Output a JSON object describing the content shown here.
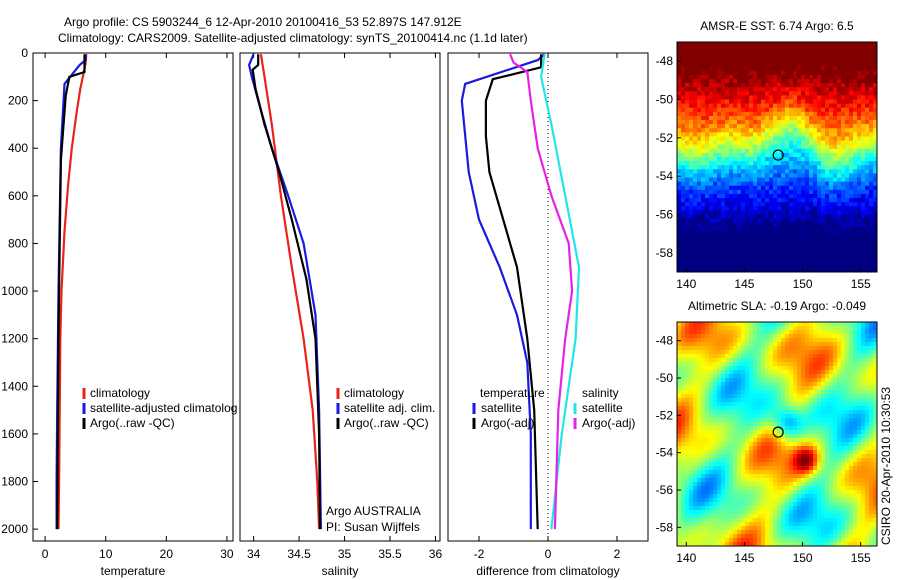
{
  "figure": {
    "title_line1": "Argo profile: CS 5903244_6 12-Apr-2010 20100416_53 52.897S 147.912E",
    "title_line2": "Climatology: CARS2009. Satellite-adjusted climatology: synTS_20100414.nc (1.1d later)",
    "side_stamp": "CSIRO 20-Apr-2010 10:30:53",
    "argo_credit_line1": "Argo AUSTRALIA",
    "argo_credit_line2": "PI: Susan Wijffels"
  },
  "colors": {
    "climatology": "#e8231e",
    "satellite": "#1a1ae0",
    "argo": "#000000",
    "satellite_diff_salinity": "#22e6e6",
    "argo_diff_salinity": "#e622e6"
  },
  "chart_data": [
    {
      "id": "temperature",
      "type": "line",
      "xlabel": "temperature",
      "ylabel": "",
      "xlim": [
        -2,
        31
      ],
      "ylim": [
        2050,
        0
      ],
      "xticks": [
        0,
        10,
        20,
        30
      ],
      "yticks": [
        0,
        200,
        400,
        600,
        800,
        1000,
        1200,
        1400,
        1600,
        1800,
        2000
      ],
      "legend_position": "lower-right",
      "legend": [
        {
          "label": "climatology",
          "color": "#e8231e"
        },
        {
          "label": "satellite-adjusted climatolog",
          "color": "#1a1ae0"
        },
        {
          "label": "Argo(..raw -QC)",
          "color": "#000000"
        }
      ],
      "series": [
        {
          "name": "climatology",
          "color": "#e8231e",
          "points": [
            [
              6.8,
              5
            ],
            [
              6.7,
              40
            ],
            [
              6.4,
              80
            ],
            [
              5.8,
              150
            ],
            [
              5.2,
              250
            ],
            [
              4.4,
              400
            ],
            [
              3.8,
              550
            ],
            [
              3.2,
              750
            ],
            [
              2.7,
              1000
            ],
            [
              2.5,
              1200
            ],
            [
              2.4,
              1500
            ],
            [
              2.3,
              1800
            ],
            [
              2.2,
              2000
            ]
          ]
        },
        {
          "name": "satellite-adjusted climatology",
          "color": "#1a1ae0",
          "points": [
            [
              6.7,
              5
            ],
            [
              6.7,
              30
            ],
            [
              5.7,
              50
            ],
            [
              3.2,
              130
            ],
            [
              2.6,
              400
            ],
            [
              2.4,
              700
            ],
            [
              2.2,
              1000
            ],
            [
              2.0,
              1500
            ],
            [
              1.9,
              1800
            ],
            [
              1.9,
              2000
            ]
          ]
        },
        {
          "name": "Argo",
          "color": "#000000",
          "points": [
            [
              6.5,
              5
            ],
            [
              6.5,
              80
            ],
            [
              4.0,
              100
            ],
            [
              3.4,
              180
            ],
            [
              2.6,
              450
            ],
            [
              2.4,
              800
            ],
            [
              2.2,
              1200
            ],
            [
              2.1,
              1600
            ],
            [
              2.0,
              2000
            ]
          ]
        }
      ]
    },
    {
      "id": "salinity",
      "type": "line",
      "xlabel": "salinity",
      "ylabel": "",
      "xlim": [
        33.85,
        36.05
      ],
      "ylim": [
        2050,
        0
      ],
      "xticks": [
        34,
        34.5,
        35,
        35.5,
        36
      ],
      "yticks": [],
      "legend_position": "lower-right",
      "legend": [
        {
          "label": "climatology",
          "color": "#e8231e"
        },
        {
          "label": "satellite adj. clim.",
          "color": "#1a1ae0"
        },
        {
          "label": "Argo(..raw -QC)",
          "color": "#000000"
        }
      ],
      "series": [
        {
          "name": "climatology",
          "color": "#e8231e",
          "points": [
            [
              34.08,
              5
            ],
            [
              34.12,
              100
            ],
            [
              34.2,
              300
            ],
            [
              34.3,
              600
            ],
            [
              34.42,
              900
            ],
            [
              34.55,
              1200
            ],
            [
              34.65,
              1500
            ],
            [
              34.7,
              1800
            ],
            [
              34.72,
              2000
            ]
          ]
        },
        {
          "name": "satellite adj. clim.",
          "color": "#1a1ae0",
          "points": [
            [
              34.0,
              5
            ],
            [
              33.95,
              50
            ],
            [
              33.98,
              100
            ],
            [
              34.05,
              200
            ],
            [
              34.2,
              400
            ],
            [
              34.38,
              600
            ],
            [
              34.55,
              800
            ],
            [
              34.68,
              1100
            ],
            [
              34.72,
              1500
            ],
            [
              34.74,
              2000
            ]
          ]
        },
        {
          "name": "Argo",
          "color": "#000000",
          "points": [
            [
              34.05,
              5
            ],
            [
              34.05,
              50
            ],
            [
              33.99,
              70
            ],
            [
              34.02,
              150
            ],
            [
              34.12,
              300
            ],
            [
              34.28,
              500
            ],
            [
              34.42,
              700
            ],
            [
              34.58,
              950
            ],
            [
              34.68,
              1200
            ],
            [
              34.72,
              1600
            ],
            [
              34.73,
              2000
            ]
          ]
        }
      ]
    },
    {
      "id": "difference",
      "type": "line",
      "xlabel": "difference from climatology",
      "ylabel": "",
      "xlim": [
        -2.9,
        2.9
      ],
      "ylim": [
        2050,
        0
      ],
      "xticks": [
        -2,
        0,
        2
      ],
      "yticks": [],
      "legend_position": "lower",
      "legend_left": {
        "heading": "temperature",
        "items": [
          {
            "label": "satellite",
            "color": "#1a1ae0"
          },
          {
            "label": "Argo(-adj)",
            "color": "#000000"
          }
        ]
      },
      "legend_right": {
        "heading": "salinity",
        "items": [
          {
            "label": "satellite",
            "color": "#22e6e6"
          },
          {
            "label": "Argo(-adj)",
            "color": "#e622e6"
          }
        ]
      },
      "series": [
        {
          "name": "temperature satellite",
          "color": "#1a1ae0",
          "points": [
            [
              -0.1,
              5
            ],
            [
              -0.3,
              30
            ],
            [
              -2.4,
              130
            ],
            [
              -2.5,
              200
            ],
            [
              -2.3,
              500
            ],
            [
              -2.0,
              700
            ],
            [
              -1.4,
              900
            ],
            [
              -0.9,
              1100
            ],
            [
              -0.6,
              1300
            ],
            [
              -0.5,
              1600
            ],
            [
              -0.5,
              2000
            ]
          ]
        },
        {
          "name": "temperature Argo",
          "color": "#000000",
          "points": [
            [
              -0.2,
              5
            ],
            [
              -0.2,
              60
            ],
            [
              -1.6,
              110
            ],
            [
              -1.8,
              200
            ],
            [
              -1.8,
              350
            ],
            [
              -1.7,
              500
            ],
            [
              -1.3,
              700
            ],
            [
              -0.9,
              900
            ],
            [
              -0.6,
              1200
            ],
            [
              -0.4,
              1500
            ],
            [
              -0.3,
              2000
            ]
          ]
        },
        {
          "name": "salinity satellite",
          "color": "#22e6e6",
          "points": [
            [
              -0.1,
              5
            ],
            [
              -0.2,
              100
            ],
            [
              0.1,
              300
            ],
            [
              0.5,
              600
            ],
            [
              0.9,
              900
            ],
            [
              0.8,
              1200
            ],
            [
              0.4,
              1600
            ],
            [
              0.1,
              2000
            ]
          ]
        },
        {
          "name": "salinity Argo",
          "color": "#e622e6",
          "points": [
            [
              -1.1,
              5
            ],
            [
              -1.0,
              40
            ],
            [
              -0.6,
              80
            ],
            [
              -0.5,
              200
            ],
            [
              -0.3,
              400
            ],
            [
              0.1,
              600
            ],
            [
              0.6,
              800
            ],
            [
              0.7,
              1000
            ],
            [
              0.5,
              1200
            ],
            [
              0.3,
              1500
            ],
            [
              0.2,
              2000
            ]
          ]
        }
      ],
      "zero_line": true
    },
    {
      "id": "sst_map",
      "type": "heatmap",
      "title": "AMSR-E SST: 6.74 Argo: 6.5",
      "xlim": [
        139.2,
        156.4
      ],
      "ylim": [
        -59,
        -47
      ],
      "xticks": [
        140,
        145,
        150,
        155
      ],
      "yticks": [
        -48,
        -50,
        -52,
        -54,
        -56,
        -58
      ],
      "marker": {
        "lon": 147.9,
        "lat": -52.9
      },
      "colormap": "jet"
    },
    {
      "id": "sla_map",
      "type": "heatmap",
      "title": "Altimetric SLA: -0.19 Argo: -0.049",
      "xlim": [
        139.2,
        156.4
      ],
      "ylim": [
        -59,
        -47
      ],
      "xticks": [
        140,
        145,
        150,
        155
      ],
      "yticks": [
        -48,
        -50,
        -52,
        -54,
        -56,
        -58
      ],
      "marker": {
        "lon": 147.9,
        "lat": -52.9
      },
      "colormap": "jet"
    }
  ]
}
